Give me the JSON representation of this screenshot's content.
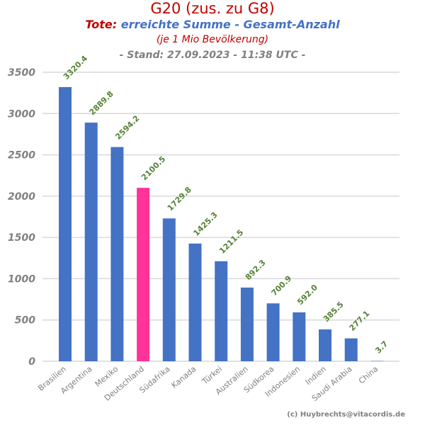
{
  "chart_data": {
    "type": "bar",
    "title": "G20 (zus. zu G8)",
    "subtitle_lead": "Tote:",
    "subtitle_rest": "erreichte Summe - Gesamt-Anzahl",
    "subtitle2": "(je 1 Mio Bevölkerung)",
    "subtitle3": "- Stand: 27.09.2023 - 11:38 UTC -",
    "credit": "(c) Huybrechts@vitacordis.de",
    "categories": [
      "Brasilien",
      "Argentina",
      "Mexiko",
      "Deutschland",
      "Südafrika",
      "Kanada",
      "Türkei",
      "Australien",
      "Südkorea",
      "Indonesien",
      "Indien",
      "Saudi Arabia",
      "China"
    ],
    "values": [
      3320.4,
      2889.8,
      2594.2,
      2100.5,
      1729.8,
      1425.3,
      1211.5,
      892.3,
      700.9,
      592.0,
      385.5,
      277.1,
      3.7
    ],
    "value_labels": [
      "3320.4",
      "2889.8",
      "2594.2",
      "2100.5",
      "1729.8",
      "1425.3",
      "1211.5",
      "892.3",
      "700.9",
      "592.0",
      "385.5",
      "277.1",
      "3.7"
    ],
    "ylim": [
      0,
      3500
    ],
    "yticks": [
      0,
      500,
      1000,
      1500,
      2000,
      2500,
      3000,
      3500
    ],
    "ytick_labels": [
      "0",
      "500",
      "1000",
      "1500",
      "2000",
      "2500",
      "3000",
      "3500"
    ],
    "grid": true,
    "colors": {
      "bar": "#4472c4",
      "highlight": "#ff3399",
      "grid": "#d9d9d9"
    },
    "highlight_category": "Deutschland"
  }
}
